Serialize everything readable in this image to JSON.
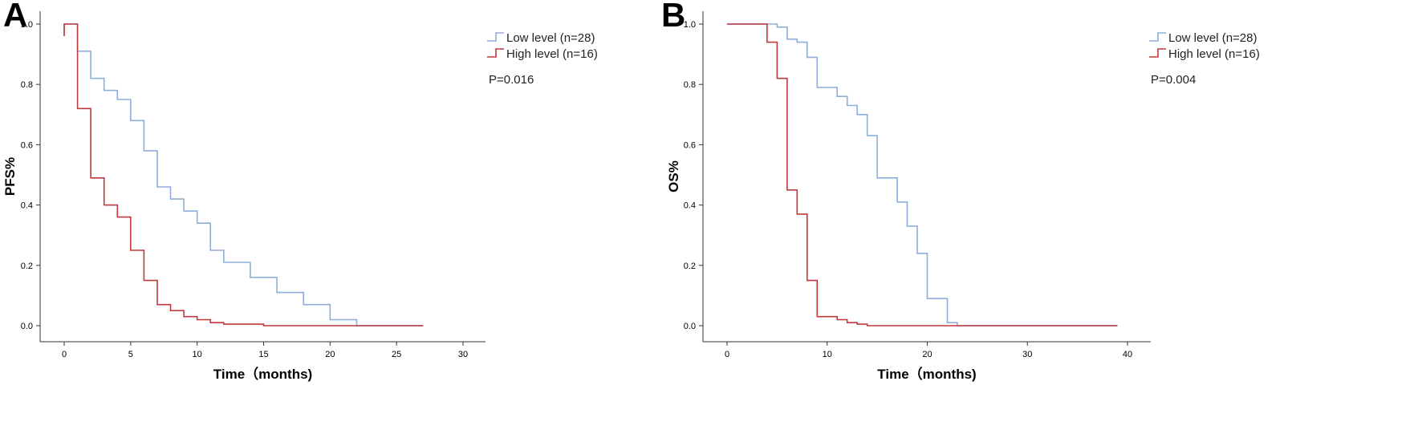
{
  "chart_data": [
    {
      "type": "line",
      "panel_label": "A",
      "xlabel": "Time（months)",
      "ylabel": "PFS%",
      "xlim": [
        0,
        30
      ],
      "ylim": [
        0,
        1
      ],
      "x_ticks": [
        0,
        5,
        10,
        15,
        20,
        25,
        30
      ],
      "y_ticks": [
        0.0,
        0.2,
        0.4,
        0.6,
        0.8,
        1.0
      ],
      "x_tick_labels": [
        "0",
        "5",
        "10",
        "15",
        "20",
        "25",
        "30"
      ],
      "y_tick_labels": [
        "0.0",
        "0.2",
        "0.4",
        "0.6",
        "0.8",
        "1.0"
      ],
      "grid": false,
      "legend": "top-right",
      "annotation": "P=0.016",
      "series": [
        {
          "name": "Low level (n=28)",
          "color": "#8eaedb",
          "step": true,
          "x": [
            0,
            0,
            1,
            2,
            3,
            4,
            5,
            6,
            7,
            8,
            9,
            10,
            11,
            12,
            14,
            16,
            18,
            20,
            22,
            27
          ],
          "y": [
            0.96,
            1.0,
            0.91,
            0.82,
            0.78,
            0.75,
            0.68,
            0.58,
            0.46,
            0.42,
            0.38,
            0.34,
            0.25,
            0.21,
            0.16,
            0.11,
            0.07,
            0.02,
            0.0,
            0.0
          ]
        },
        {
          "name": "High level (n=16)",
          "color": "#c0393d",
          "step": true,
          "x": [
            0,
            0,
            1,
            2,
            3,
            4,
            5,
            6,
            7,
            8,
            9,
            10,
            11,
            12,
            15,
            27
          ],
          "y": [
            0.96,
            1.0,
            0.72,
            0.49,
            0.4,
            0.36,
            0.25,
            0.15,
            0.07,
            0.05,
            0.03,
            0.02,
            0.01,
            0.005,
            0.0,
            0.0
          ]
        }
      ]
    },
    {
      "type": "line",
      "panel_label": "B",
      "xlabel": "Time（months)",
      "ylabel": "OS%",
      "xlim": [
        0,
        40
      ],
      "ylim": [
        0,
        1
      ],
      "x_ticks": [
        0,
        10,
        20,
        30,
        40
      ],
      "y_ticks": [
        0.0,
        0.2,
        0.4,
        0.6,
        0.8,
        1.0
      ],
      "x_tick_labels": [
        "0",
        "10",
        "20",
        "30",
        "40"
      ],
      "y_tick_labels": [
        "0.0",
        "0.2",
        "0.4",
        "0.6",
        "0.8",
        "1.0"
      ],
      "grid": false,
      "legend": "top-right",
      "annotation": "P=0.004",
      "series": [
        {
          "name": "Low level (n=28)",
          "color": "#8eaedb",
          "step": true,
          "x": [
            0,
            4,
            5,
            6,
            7,
            8,
            9,
            11,
            12,
            13,
            14,
            15,
            17,
            18,
            19,
            20,
            22,
            23,
            39
          ],
          "y": [
            1.0,
            1.0,
            0.99,
            0.95,
            0.94,
            0.89,
            0.79,
            0.76,
            0.73,
            0.7,
            0.63,
            0.49,
            0.41,
            0.33,
            0.24,
            0.09,
            0.01,
            0.0,
            0.0
          ]
        },
        {
          "name": "High level (n=16)",
          "color": "#c0393d",
          "step": true,
          "x": [
            0,
            4,
            5,
            6,
            7,
            8,
            9,
            11,
            12,
            13,
            14,
            39
          ],
          "y": [
            1.0,
            0.94,
            0.82,
            0.45,
            0.37,
            0.15,
            0.03,
            0.02,
            0.01,
            0.005,
            0.0,
            0.0
          ]
        }
      ]
    }
  ]
}
